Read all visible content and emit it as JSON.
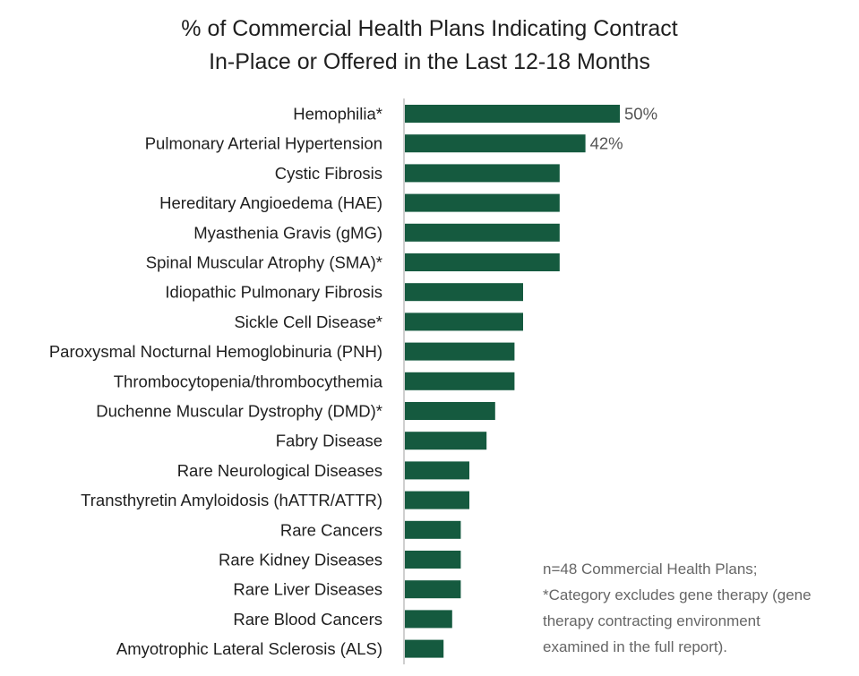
{
  "chart_data": {
    "type": "bar",
    "orientation": "horizontal",
    "title": [
      "% of Commercial Health Plans Indicating Contract",
      "In-Place or Offered in the Last 12-18 Months"
    ],
    "categories": [
      "Hemophilia*",
      "Pulmonary Arterial Hypertension",
      "Cystic Fibrosis",
      "Hereditary Angioedema (HAE)",
      "Myasthenia Gravis (gMG)",
      "Spinal Muscular Atrophy (SMA)*",
      "Idiopathic Pulmonary Fibrosis",
      "Sickle Cell Disease*",
      "Paroxysmal Nocturnal Hemoglobinuria (PNH)",
      "Thrombocytopenia/thrombocythemia",
      "Duchenne Muscular Dystrophy (DMD)*",
      "Fabry Disease",
      "Rare Neurological Diseases",
      "Transthyretin Amyloidosis (hATTR/ATTR)",
      "Rare Cancers",
      "Rare Kidney Diseases",
      "Rare Liver Diseases",
      "Rare Blood Cancers",
      "Amyotrophic Lateral Sclerosis (ALS)"
    ],
    "values": [
      50,
      42,
      36,
      36,
      36,
      36,
      27.5,
      27.5,
      25.5,
      25.5,
      21,
      19,
      15,
      15,
      13,
      13,
      13,
      11,
      9
    ],
    "data_labels": [
      "50%",
      "42%",
      "",
      "",
      "",
      "",
      "",
      "",
      "",
      "",
      "",
      "",
      "",
      "",
      "",
      "",
      "",
      "",
      ""
    ],
    "xlim": [
      0,
      50
    ],
    "xlabel": "",
    "ylabel": "",
    "grid": false,
    "bar_color": "#155a3f",
    "axis_color": "#bfbfbf"
  },
  "note": [
    "n=48 Commercial Health Plans;",
    "*Category excludes gene therapy (gene",
    "therapy contracting environment",
    "examined in the full report)."
  ]
}
